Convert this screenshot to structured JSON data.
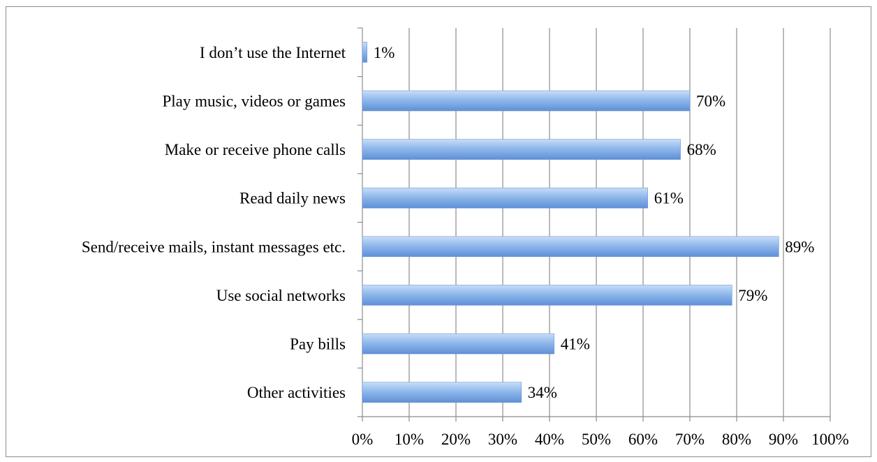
{
  "chart_data": {
    "type": "bar",
    "orientation": "horizontal",
    "categories": [
      "I don’t use the Internet",
      "Play music, videos or games",
      "Make or receive phone calls",
      "Read daily news",
      "Send/receive mails, instant messages etc.",
      "Use social networks",
      "Pay bills",
      "Other activities"
    ],
    "values": [
      1,
      70,
      68,
      61,
      89,
      79,
      41,
      34
    ],
    "data_labels": [
      "1%",
      "70%",
      "68%",
      "61%",
      "89%",
      "79%",
      "41%",
      "34%"
    ],
    "x_ticks": [
      "0%",
      "10%",
      "20%",
      "30%",
      "40%",
      "50%",
      "60%",
      "70%",
      "80%",
      "90%",
      "100%"
    ],
    "xlim": [
      0,
      100
    ],
    "grid": "vertical",
    "legend": "none",
    "bar_color": "#8fb8ec",
    "bar_color_dark": "#5f8fd6"
  }
}
